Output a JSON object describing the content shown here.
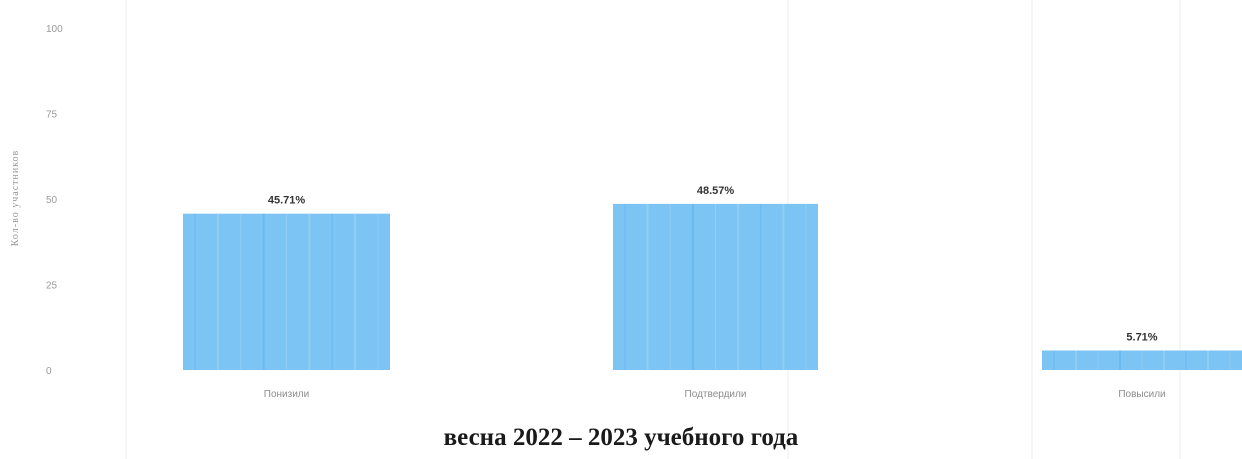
{
  "caption": "весна 2022 – 2023 учебного года",
  "chart_data": {
    "type": "bar",
    "ylabel": "Кол-во участников",
    "ylim": [
      0,
      100
    ],
    "yticks": [
      0,
      25,
      50,
      75,
      100
    ],
    "grid": "vertical",
    "categories": [
      "Понизили",
      "Подтвердили",
      "Повысили"
    ],
    "values": [
      45.71,
      48.57,
      5.71
    ],
    "data_labels": [
      "45.71%",
      "48.57%",
      "5.71%"
    ],
    "bar_color": "#7cc4f4"
  }
}
